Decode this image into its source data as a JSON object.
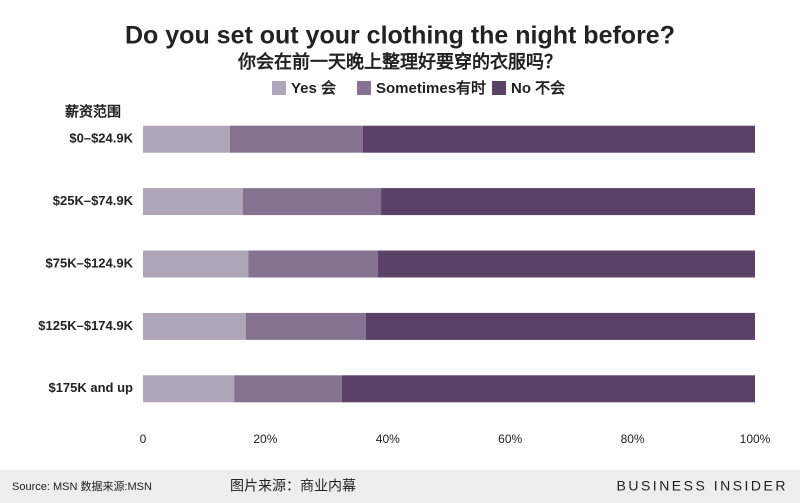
{
  "chart_data": {
    "type": "stacked-bar-horizontal",
    "title": "Do you set out your clothing the night before?",
    "subtitle": "你会在前一天晚上整理好要穿的衣服吗？",
    "y_axis_label": "薪资范围",
    "categories": [
      "$0–$24.9K",
      "$25K–$74.9K",
      "$75K–$124.9K",
      "$125K–$174.9K",
      "$175K and up"
    ],
    "series": [
      {
        "name": "Yes 会",
        "color": "#b0a4b8",
        "values": [
          14.2,
          16.3,
          17.2,
          16.8,
          14.9
        ]
      },
      {
        "name": "Sometimes有时",
        "color": "#857190",
        "values": [
          21.7,
          22.6,
          21.2,
          19.6,
          17.6
        ]
      },
      {
        "name": "No 不会",
        "color": "#5b4068",
        "values": [
          64.1,
          61.1,
          61.6,
          63.6,
          67.5
        ]
      }
    ],
    "xlim": [
      0,
      100
    ],
    "xticks": [
      0,
      {
        "value": 20,
        "label": "20%"
      },
      {
        "value": 40,
        "label": "40%"
      },
      {
        "value": 60,
        "label": "60%"
      },
      {
        "value": 80,
        "label": "80%"
      },
      {
        "value": 100,
        "label": "100%"
      }
    ],
    "grid": false,
    "legend": "top",
    "source": "Source: MSN 数据来源:MSN",
    "image_source": "图片来源：商业内幕",
    "brand": "BUSINESS INSIDER"
  }
}
